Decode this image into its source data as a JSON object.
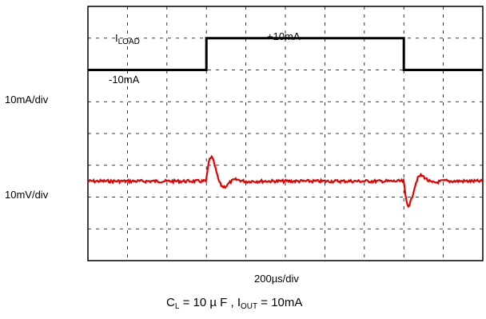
{
  "chart_data": {
    "type": "line",
    "grid": true,
    "divisions": {
      "x": 10,
      "y": 8
    },
    "x_scale_label": "200µs/div",
    "series": [
      {
        "channel_label": "10mA/div",
        "color": "#000000",
        "text_marks": {
          "name_main": "I",
          "name_sub": "LOAD",
          "high_level": "+10mA",
          "low_level": "-10mA"
        },
        "low_div": 2.0,
        "high_div": 3.0,
        "step_up_div": 3.0,
        "step_down_div": 8.0
      },
      {
        "channel_label": "10mV/div",
        "color": "#e60000",
        "baseline_div": 5.5,
        "noise_div": 0.045,
        "transients": [
          {
            "at_div": 3.0,
            "peak_div": -1.35,
            "ring_div": 0.35
          },
          {
            "at_div": 8.0,
            "peak_div": 1.35,
            "ring_div": -0.35
          }
        ]
      }
    ],
    "caption": {
      "c_main": "C",
      "c_sub": "L",
      "c_value": " = 10 µ F , ",
      "i_main": "I",
      "i_sub": "OUT",
      "i_value": " = 10mA"
    }
  }
}
